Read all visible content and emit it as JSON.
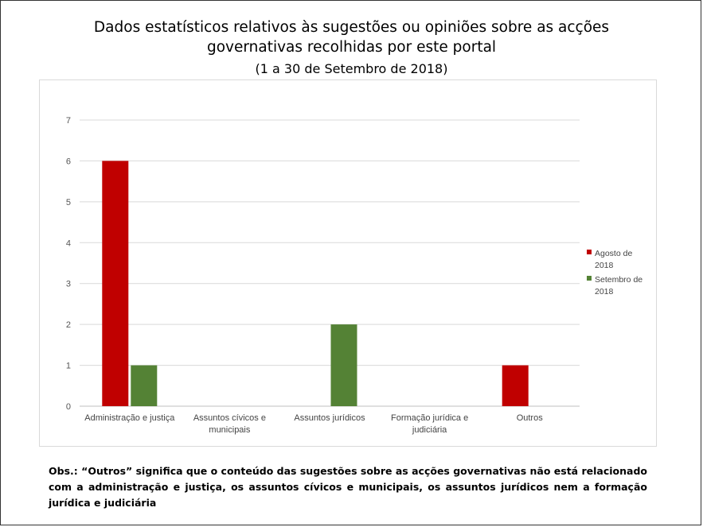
{
  "chart_data": {
    "type": "bar",
    "title": "Dados estatísticos relativos às sugestões ou opiniões sobre as acções governativas recolhidas por este portal",
    "title_lines": [
      "Dados estatísticos relativos às sugestões ou opiniões sobre as acções",
      "governativas recolhidas por este portal"
    ],
    "subtitle": "(1 a 30 de Setembro de 2018)",
    "categories": [
      [
        "Administração e justiça"
      ],
      [
        "Assuntos cívicos e",
        "municipais"
      ],
      [
        "Assuntos jurídicos"
      ],
      [
        "Formação jurídica e",
        "judiciária"
      ],
      [
        "Outros"
      ]
    ],
    "series": [
      {
        "name": "Agosto de 2018",
        "name_lines": [
          "Agosto de",
          "2018"
        ],
        "color": "#c00000",
        "values": [
          6,
          0,
          0,
          0,
          1
        ]
      },
      {
        "name": "Setembro de 2018",
        "name_lines": [
          "Setembro de",
          "2018"
        ],
        "color": "#548235",
        "values": [
          1,
          0,
          2,
          0,
          0
        ]
      }
    ],
    "yticks": [
      "0",
      "1",
      "2",
      "3",
      "4",
      "5",
      "6",
      "7"
    ],
    "ylim": [
      0,
      7
    ],
    "xlabel": "",
    "ylabel": "",
    "grid": true,
    "legend_position": "right"
  },
  "note": "Obs.: “Outros” significa que o conteúdo das sugestões sobre as acções governativas não está relacionado com a administração e justiça, os assuntos cívicos e municipais, os assuntos jurídicos nem a formação jurídica e judiciária"
}
